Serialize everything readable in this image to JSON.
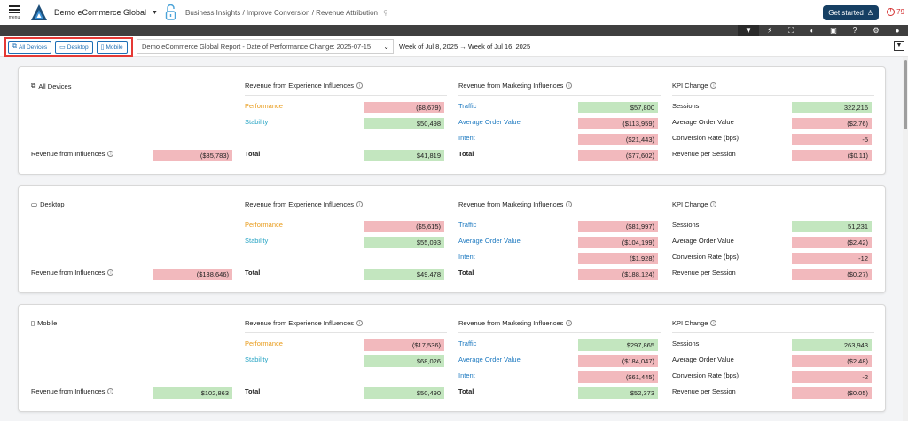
{
  "header": {
    "menu_label": "menu",
    "org_name": "Demo eCommerce Global",
    "breadcrumb": "Business Insights / Improve Conversion / Revenue Attribution",
    "get_started_label": "Get started",
    "alert_count": "79"
  },
  "toolbar": {
    "icons": [
      "filter-icon",
      "bolt-icon",
      "fullscreen-icon",
      "contrast-icon",
      "data-icon",
      "help-icon",
      "gear-icon",
      "user-icon"
    ]
  },
  "filters": {
    "devices": [
      {
        "label": "All Devices",
        "icon": "devices-icon"
      },
      {
        "label": "Desktop",
        "icon": "desktop-icon"
      },
      {
        "label": "Mobile",
        "icon": "mobile-icon"
      }
    ],
    "report_selected": "Demo eCommerce Global Report - Date of Performance Change: 2025-07-15",
    "week_range": "Week of Jul 8, 2025 → Week of Jul 16, 2025"
  },
  "column_headers": {
    "experience": "Revenue from Experience Influences",
    "marketing": "Revenue from Marketing Influences",
    "kpi": "KPI Change",
    "rfi_label": "Revenue from Influences",
    "total_label": "Total"
  },
  "exp_labels": [
    "Performance",
    "Stability"
  ],
  "mkt_labels": [
    "Traffic",
    "Average Order Value",
    "Intent"
  ],
  "kpi_labels": [
    "Sessions",
    "Average Order Value",
    "Conversion Rate (bps)",
    "Revenue per Session"
  ],
  "segments": [
    {
      "name": "All Devices",
      "icon": "devices-icon",
      "rfi": {
        "value": "($35,783)",
        "sign": "neg"
      },
      "exp": [
        {
          "value": "($8,679)",
          "sign": "neg"
        },
        {
          "value": "$50,498",
          "sign": "pos"
        }
      ],
      "exp_total": {
        "value": "$41,819",
        "sign": "pos"
      },
      "mkt": [
        {
          "value": "$57,800",
          "sign": "pos"
        },
        {
          "value": "($113,959)",
          "sign": "neg"
        },
        {
          "value": "($21,443)",
          "sign": "neg"
        }
      ],
      "mkt_total": {
        "value": "($77,602)",
        "sign": "neg"
      },
      "kpi": [
        {
          "value": "322,216",
          "sign": "pos"
        },
        {
          "value": "($2.76)",
          "sign": "neg"
        },
        {
          "value": "-5",
          "sign": "neg"
        },
        {
          "value": "($0.11)",
          "sign": "neg"
        }
      ]
    },
    {
      "name": "Desktop",
      "icon": "desktop-icon",
      "rfi": {
        "value": "($138,646)",
        "sign": "neg"
      },
      "exp": [
        {
          "value": "($5,615)",
          "sign": "neg"
        },
        {
          "value": "$55,093",
          "sign": "pos"
        }
      ],
      "exp_total": {
        "value": "$49,478",
        "sign": "pos"
      },
      "mkt": [
        {
          "value": "($81,997)",
          "sign": "neg"
        },
        {
          "value": "($104,199)",
          "sign": "neg"
        },
        {
          "value": "($1,928)",
          "sign": "neg"
        }
      ],
      "mkt_total": {
        "value": "($188,124)",
        "sign": "neg"
      },
      "kpi": [
        {
          "value": "51,231",
          "sign": "pos"
        },
        {
          "value": "($2.42)",
          "sign": "neg"
        },
        {
          "value": "-12",
          "sign": "neg"
        },
        {
          "value": "($0.27)",
          "sign": "neg"
        }
      ]
    },
    {
      "name": "Mobile",
      "icon": "mobile-icon",
      "rfi": {
        "value": "$102,863",
        "sign": "pos"
      },
      "exp": [
        {
          "value": "($17,536)",
          "sign": "neg"
        },
        {
          "value": "$68,026",
          "sign": "pos"
        }
      ],
      "exp_total": {
        "value": "$50,490",
        "sign": "pos"
      },
      "mkt": [
        {
          "value": "$297,865",
          "sign": "pos"
        },
        {
          "value": "($184,047)",
          "sign": "neg"
        },
        {
          "value": "($61,445)",
          "sign": "neg"
        }
      ],
      "mkt_total": {
        "value": "$52,373",
        "sign": "pos"
      },
      "kpi": [
        {
          "value": "263,943",
          "sign": "pos"
        },
        {
          "value": "($2.48)",
          "sign": "neg"
        },
        {
          "value": "-2",
          "sign": "neg"
        },
        {
          "value": "($0.05)",
          "sign": "neg"
        }
      ]
    }
  ]
}
